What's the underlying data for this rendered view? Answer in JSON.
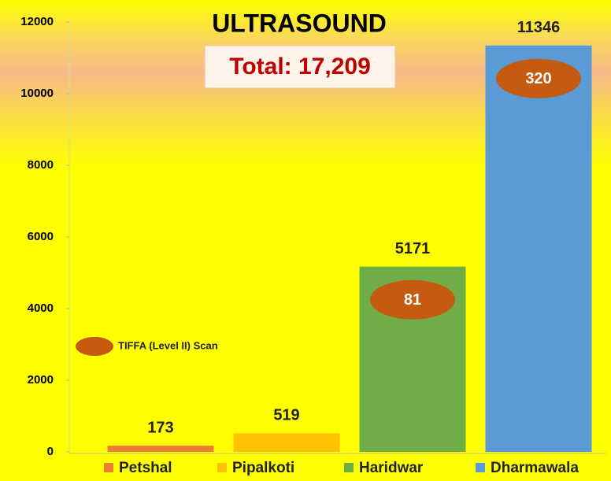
{
  "chart_data": {
    "type": "bar",
    "title": "ULTRASOUND",
    "annotation": "Total: 17,209",
    "categories": [
      "Petshal",
      "Pipalkoti",
      "Haridwar",
      "Dharmawala"
    ],
    "values": [
      173,
      519,
      5171,
      11346
    ],
    "colors": [
      "#ed7d31",
      "#ffc000",
      "#70ad47",
      "#5b9bd5"
    ],
    "tiffa": {
      "name": "TIFFA (Level II) Scan",
      "values": [
        null,
        null,
        81,
        320
      ],
      "color": "#c55a11"
    },
    "ylim": [
      0,
      12000
    ],
    "yticks": [
      0,
      2000,
      4000,
      6000,
      8000,
      10000,
      12000
    ]
  }
}
